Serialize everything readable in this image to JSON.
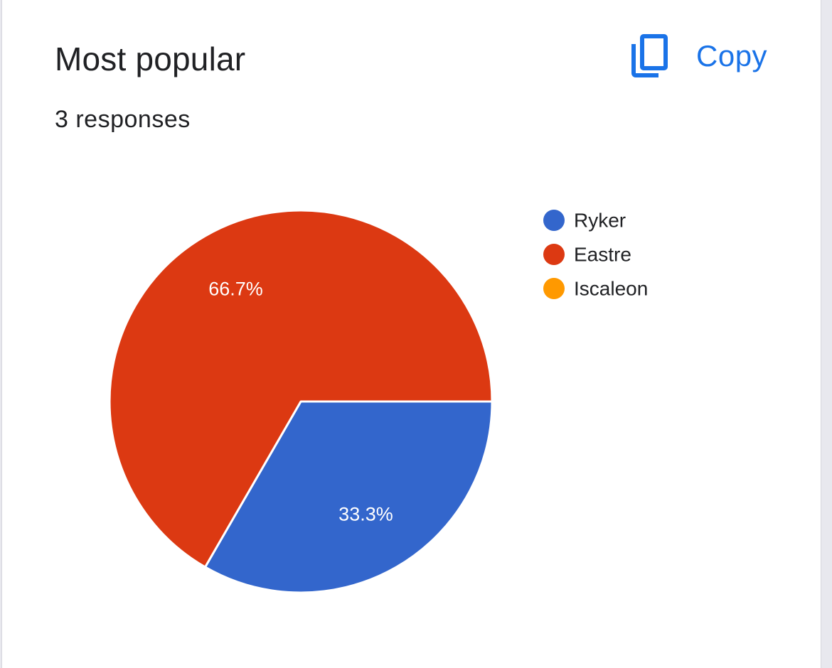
{
  "header": {
    "title": "Most popular",
    "subtitle": "3 responses",
    "copy_label": "Copy"
  },
  "icons": {
    "copy": "copy-icon"
  },
  "colors": {
    "accent": "#1a73e8",
    "Ryker": "#3366cc",
    "Eastre": "#dc3912",
    "Iscaleon": "#ff9900"
  },
  "chart_data": {
    "type": "pie",
    "title": "Most popular",
    "subtitle": "3 responses",
    "legend_position": "right",
    "slices": [
      {
        "name": "Ryker",
        "value": 1,
        "label": "33.3%",
        "color": "#3366cc"
      },
      {
        "name": "Eastre",
        "value": 2,
        "label": "66.7%",
        "color": "#dc3912"
      },
      {
        "name": "Iscaleon",
        "value": 0,
        "label": "",
        "color": "#ff9900"
      }
    ]
  }
}
